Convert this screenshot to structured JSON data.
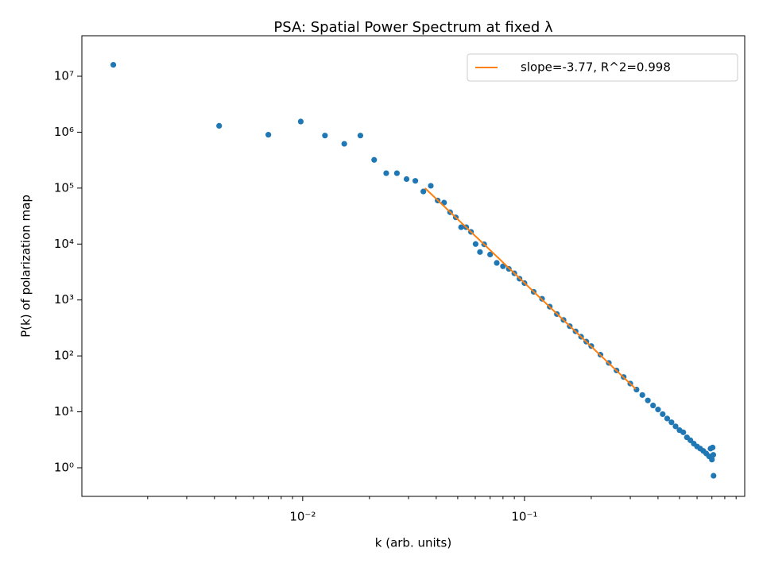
{
  "chart_data": {
    "type": "scatter",
    "title": "PSA: Spatial Power Spectrum at fixed λ",
    "xlabel": "k (arb. units)",
    "ylabel": "P(k) of polarization map",
    "xscale": "log",
    "yscale": "log",
    "grid": false,
    "legend": "upper right",
    "xlim": [
      0.00101,
      0.984
    ],
    "ylim": [
      0.308,
      53000000
    ],
    "xticks": [
      {
        "value": 0.01,
        "label": "10⁻²"
      },
      {
        "value": 0.1,
        "label": "10⁻¹"
      }
    ],
    "xminor": [
      0.002,
      0.003,
      0.004,
      0.005,
      0.006,
      0.007,
      0.008,
      0.009,
      0.02,
      0.03,
      0.04,
      0.05,
      0.06,
      0.07,
      0.08,
      0.09,
      0.2,
      0.3,
      0.4,
      0.5,
      0.6,
      0.7,
      0.8,
      0.9
    ],
    "yticks": [
      {
        "value": 1,
        "label": "10⁰"
      },
      {
        "value": 10,
        "label": "10¹"
      },
      {
        "value": 100,
        "label": "10²"
      },
      {
        "value": 1000,
        "label": "10³"
      },
      {
        "value": 10000,
        "label": "10⁴"
      },
      {
        "value": 100000,
        "label": "10⁵"
      },
      {
        "value": 1000000,
        "label": "10⁶"
      },
      {
        "value": 10000000,
        "label": "10⁷"
      }
    ],
    "series": [
      {
        "type": "scatter",
        "color": "#1f77b4",
        "x": [
          0.0014,
          0.0042,
          0.007,
          0.0098,
          0.0126,
          0.0154,
          0.0182,
          0.021,
          0.0238,
          0.0266,
          0.0294,
          0.0322,
          0.035,
          0.0378,
          0.0406,
          0.0434,
          0.0462,
          0.049,
          0.0518,
          0.0546,
          0.0574,
          0.0602,
          0.063,
          0.0658,
          0.07,
          0.075,
          0.08,
          0.085,
          0.09,
          0.095,
          0.1,
          0.11,
          0.12,
          0.13,
          0.14,
          0.15,
          0.16,
          0.17,
          0.18,
          0.19,
          0.2,
          0.22,
          0.24,
          0.26,
          0.28,
          0.3,
          0.32,
          0.34,
          0.36,
          0.38,
          0.4,
          0.42,
          0.44,
          0.46,
          0.48,
          0.5,
          0.52,
          0.54,
          0.56,
          0.58,
          0.6,
          0.62,
          0.64,
          0.66,
          0.68,
          0.69,
          0.7,
          0.705,
          0.71,
          0.712
        ],
        "values": [
          16000000,
          1300000,
          900000,
          1550000,
          870000,
          620000,
          870000,
          320000,
          185000,
          185000,
          145000,
          135000,
          87000,
          110000,
          60000,
          55000,
          37000,
          30000,
          20000,
          20000,
          16500,
          10000,
          7200,
          9900,
          6500,
          4600,
          4000,
          3600,
          3000,
          2400,
          2000,
          1400,
          1050,
          760,
          560,
          440,
          340,
          275,
          220,
          180,
          150,
          105,
          75,
          55,
          42,
          32,
          25,
          20,
          16,
          13,
          11,
          9.1,
          7.6,
          6.5,
          5.5,
          4.7,
          4.3,
          3.5,
          3.1,
          2.7,
          2.4,
          2.2,
          2.0,
          1.8,
          1.6,
          2.2,
          1.4,
          2.3,
          1.7,
          0.72
        ]
      },
      {
        "type": "line",
        "name": "slope=-3.77, R^2=0.998",
        "color": "#ff7f0e",
        "x": [
          0.0356,
          0.318
        ],
        "values": [
          100000,
          25.5
        ]
      }
    ]
  }
}
